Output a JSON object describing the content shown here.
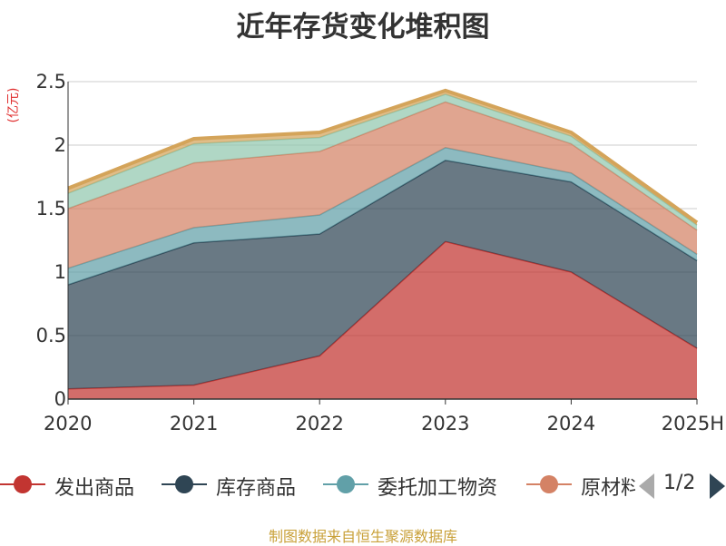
{
  "title": "近年存货变化堆积图",
  "unit_label": "(亿元)",
  "source": "制图数据来自恒生聚源数据库",
  "legend_page": "1/2",
  "chart_data": {
    "type": "area",
    "stacked": true,
    "categories": [
      "2020",
      "2021",
      "2022",
      "2023",
      "2024",
      "2025H"
    ],
    "ylim": [
      0,
      2.5
    ],
    "yticks": [
      "0",
      "0.5",
      "1",
      "1.5",
      "2",
      "2.5"
    ],
    "grid": true,
    "legend_position": "bottom",
    "series": [
      {
        "name": "发出商品",
        "color": "#c23531",
        "values": [
          0.08,
          0.11,
          0.34,
          1.24,
          1.0,
          0.4
        ]
      },
      {
        "name": "库存商品",
        "color": "#2f4554",
        "values": [
          0.82,
          1.12,
          0.96,
          0.64,
          0.71,
          0.69
        ]
      },
      {
        "name": "委托加工物资",
        "color": "#61a0a8",
        "values": [
          0.13,
          0.12,
          0.15,
          0.1,
          0.07,
          0.05
        ]
      },
      {
        "name": "原材料",
        "color": "#d48265",
        "values": [
          0.47,
          0.51,
          0.5,
          0.36,
          0.23,
          0.19
        ]
      },
      {
        "name": "",
        "color": "#91c7ae",
        "values": [
          0.12,
          0.15,
          0.11,
          0.06,
          0.06,
          0.04
        ]
      },
      {
        "name": "",
        "color": "#d4a45a",
        "values": [
          0.04,
          0.04,
          0.04,
          0.03,
          0.03,
          0.02
        ]
      }
    ]
  }
}
